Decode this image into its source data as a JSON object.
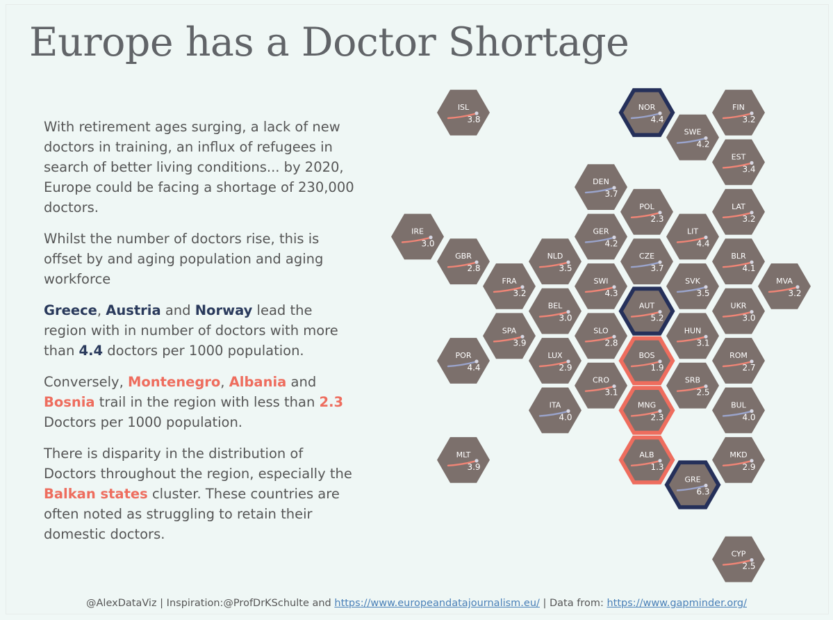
{
  "title": "Europe has a Doctor Shortage",
  "story": {
    "p1": "With retirement ages surging, a lack of new doctors in training, an influx of refugees in search of better living conditions... by 2020, Europe could be facing a shortage of 230,000 doctors.",
    "p2": "Whilst the number of doctors rise, this is offset by and aging population and aging workforce",
    "p3": {
      "c1": "Greece",
      "s1": ", ",
      "c2": "Austria",
      "s2": " and ",
      "c3": "Norway",
      "t1": " lead the region with in number of doctors with more than ",
      "num": "4.4",
      "t2": " doctors per 1000 population."
    },
    "p4": {
      "t0": "Conversely, ",
      "c1": "Montenegro",
      "s1": ", ",
      "c2": "Albania",
      "s2": " and ",
      "c3": "Bosnia",
      "t1": " trail in the region with less than ",
      "num": "2.3",
      "t2": " Doctors per 1000 population."
    },
    "p5": {
      "t1": "There is disparity in the distribution of Doctors throughout the region, especially the ",
      "hl": "Balkan states",
      "t2": " cluster. These countries are often noted as struggling to retain their domestic doctors."
    }
  },
  "footer": {
    "t1": "@AlexDataViz | Inspiration:@ProfDrKSchulte and ",
    "link1": "https://www.europeandatajournalism.eu/",
    "t2": " | Data from: ",
    "link2": "https://www.gapminder.org/"
  },
  "colors": {
    "hex_fill": "#7c706c",
    "high_border": "#25305a",
    "low_border": "#ee6d5e",
    "spark_red": "#f08576",
    "spark_blue": "#9aa4cc",
    "text_dark": "#2a3a5c",
    "text_red": "#ee6d5e"
  },
  "chart_data": {
    "type": "hex-tile-map",
    "unit": "doctors per 1000 population",
    "tiles": [
      {
        "code": "ISL",
        "value": 3.8,
        "col": 0,
        "row": 0
      },
      {
        "code": "NOR",
        "value": 4.4,
        "col": 4,
        "row": 0,
        "highlight": "high"
      },
      {
        "code": "FIN",
        "value": 3.2,
        "col": 6,
        "row": 0
      },
      {
        "code": "SWE",
        "value": 4.2,
        "col": 5,
        "row": 1
      },
      {
        "code": "EST",
        "value": 3.4,
        "col": 6,
        "row": 2
      },
      {
        "code": "DEN",
        "value": 3.7,
        "col": 3,
        "row": 3
      },
      {
        "code": "POL",
        "value": 2.3,
        "col": 4,
        "row": 4
      },
      {
        "code": "LAT",
        "value": 3.2,
        "col": 6,
        "row": 4
      },
      {
        "code": "IRE",
        "value": 3.0,
        "col": -1,
        "row": 5
      },
      {
        "code": "GER",
        "value": 4.2,
        "col": 3,
        "row": 5
      },
      {
        "code": "LIT",
        "value": 4.4,
        "col": 5,
        "row": 5
      },
      {
        "code": "GBR",
        "value": 2.8,
        "col": 0,
        "row": 6
      },
      {
        "code": "NLD",
        "value": 3.5,
        "col": 2,
        "row": 6
      },
      {
        "code": "CZE",
        "value": 3.7,
        "col": 4,
        "row": 6
      },
      {
        "code": "BLR",
        "value": 4.1,
        "col": 6,
        "row": 6
      },
      {
        "code": "FRA",
        "value": 3.2,
        "col": 1,
        "row": 7
      },
      {
        "code": "SWI",
        "value": 4.3,
        "col": 3,
        "row": 7
      },
      {
        "code": "SVK",
        "value": 3.5,
        "col": 5,
        "row": 7
      },
      {
        "code": "MVA",
        "value": 3.2,
        "col": 7,
        "row": 7
      },
      {
        "code": "BEL",
        "value": 3.0,
        "col": 2,
        "row": 8
      },
      {
        "code": "AUT",
        "value": 5.2,
        "col": 4,
        "row": 8,
        "highlight": "high"
      },
      {
        "code": "UKR",
        "value": 3.0,
        "col": 6,
        "row": 8
      },
      {
        "code": "SPA",
        "value": 3.9,
        "col": 1,
        "row": 9
      },
      {
        "code": "SLO",
        "value": 2.8,
        "col": 3,
        "row": 9
      },
      {
        "code": "HUN",
        "value": 3.1,
        "col": 5,
        "row": 9
      },
      {
        "code": "POR",
        "value": 4.4,
        "col": 0,
        "row": 10
      },
      {
        "code": "LUX",
        "value": 2.9,
        "col": 2,
        "row": 10
      },
      {
        "code": "BOS",
        "value": 1.9,
        "col": 4,
        "row": 10,
        "highlight": "low"
      },
      {
        "code": "ROM",
        "value": 2.7,
        "col": 6,
        "row": 10
      },
      {
        "code": "CRO",
        "value": 3.1,
        "col": 3,
        "row": 11
      },
      {
        "code": "SRB",
        "value": 2.5,
        "col": 5,
        "row": 11
      },
      {
        "code": "ITA",
        "value": 4.0,
        "col": 2,
        "row": 12
      },
      {
        "code": "MNG",
        "value": 2.3,
        "col": 4,
        "row": 12,
        "highlight": "low"
      },
      {
        "code": "BUL",
        "value": 4.0,
        "col": 6,
        "row": 12
      },
      {
        "code": "MLT",
        "value": 3.9,
        "col": 0,
        "row": 14
      },
      {
        "code": "ALB",
        "value": 1.3,
        "col": 4,
        "row": 14,
        "highlight": "low"
      },
      {
        "code": "MKD",
        "value": 2.9,
        "col": 6,
        "row": 14
      },
      {
        "code": "GRE",
        "value": 6.3,
        "col": 5,
        "row": 15,
        "highlight": "high"
      },
      {
        "code": "CYP",
        "value": 2.5,
        "col": 6,
        "row": 18
      }
    ]
  }
}
